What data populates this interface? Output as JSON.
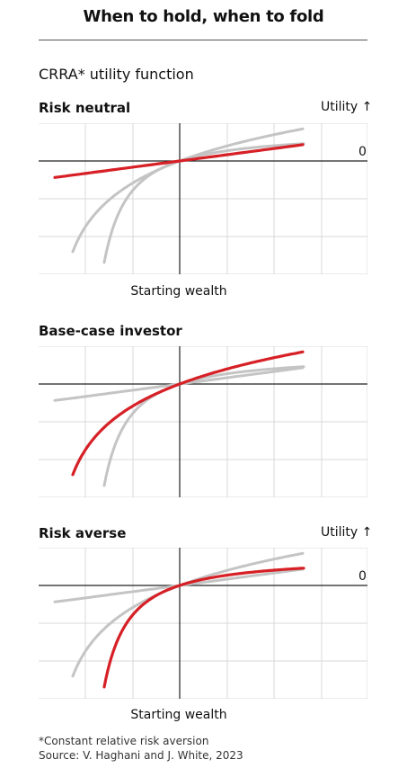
{
  "title": "When to hold, when to fold",
  "subtitle": "CRRA* utility function",
  "y_axis_label": "Utility ↑",
  "zero_label": "0",
  "x_axis_label": "Starting wealth",
  "footnote": "*Constant relative risk aversion",
  "source": "Source: V. Haghani and J. White, 2023",
  "colors": {
    "highlight": "#d62026",
    "reference": "#c4c4c4",
    "grid": "#d9d9d9",
    "axis": "#222222"
  },
  "chart_data": [
    {
      "type": "line",
      "title": "Risk neutral",
      "highlight": "linear",
      "show_y_axis_label": true,
      "show_zero_label": true,
      "show_x_label": true,
      "series": [
        {
          "name": "",
          "role": "reference",
          "kind": "log"
        },
        {
          "name": "",
          "role": "reference",
          "kind": "power"
        },
        {
          "name": "",
          "role": "highlight",
          "kind": "linear"
        }
      ]
    },
    {
      "type": "line",
      "title": "Base-case investor",
      "highlight": "log",
      "show_y_axis_label": false,
      "show_zero_label": false,
      "show_x_label": false,
      "series": [
        {
          "name": "",
          "role": "reference",
          "kind": "linear"
        },
        {
          "name": "",
          "role": "reference",
          "kind": "power"
        },
        {
          "name": "",
          "role": "highlight",
          "kind": "log"
        }
      ]
    },
    {
      "type": "line",
      "title": "Risk averse",
      "highlight": "power",
      "show_y_axis_label": true,
      "show_zero_label": true,
      "show_x_label": true,
      "series": [
        {
          "name": "",
          "role": "reference",
          "kind": "linear"
        },
        {
          "name": "",
          "role": "reference",
          "kind": "log"
        },
        {
          "name": "",
          "role": "highlight",
          "kind": "power"
        }
      ]
    }
  ]
}
